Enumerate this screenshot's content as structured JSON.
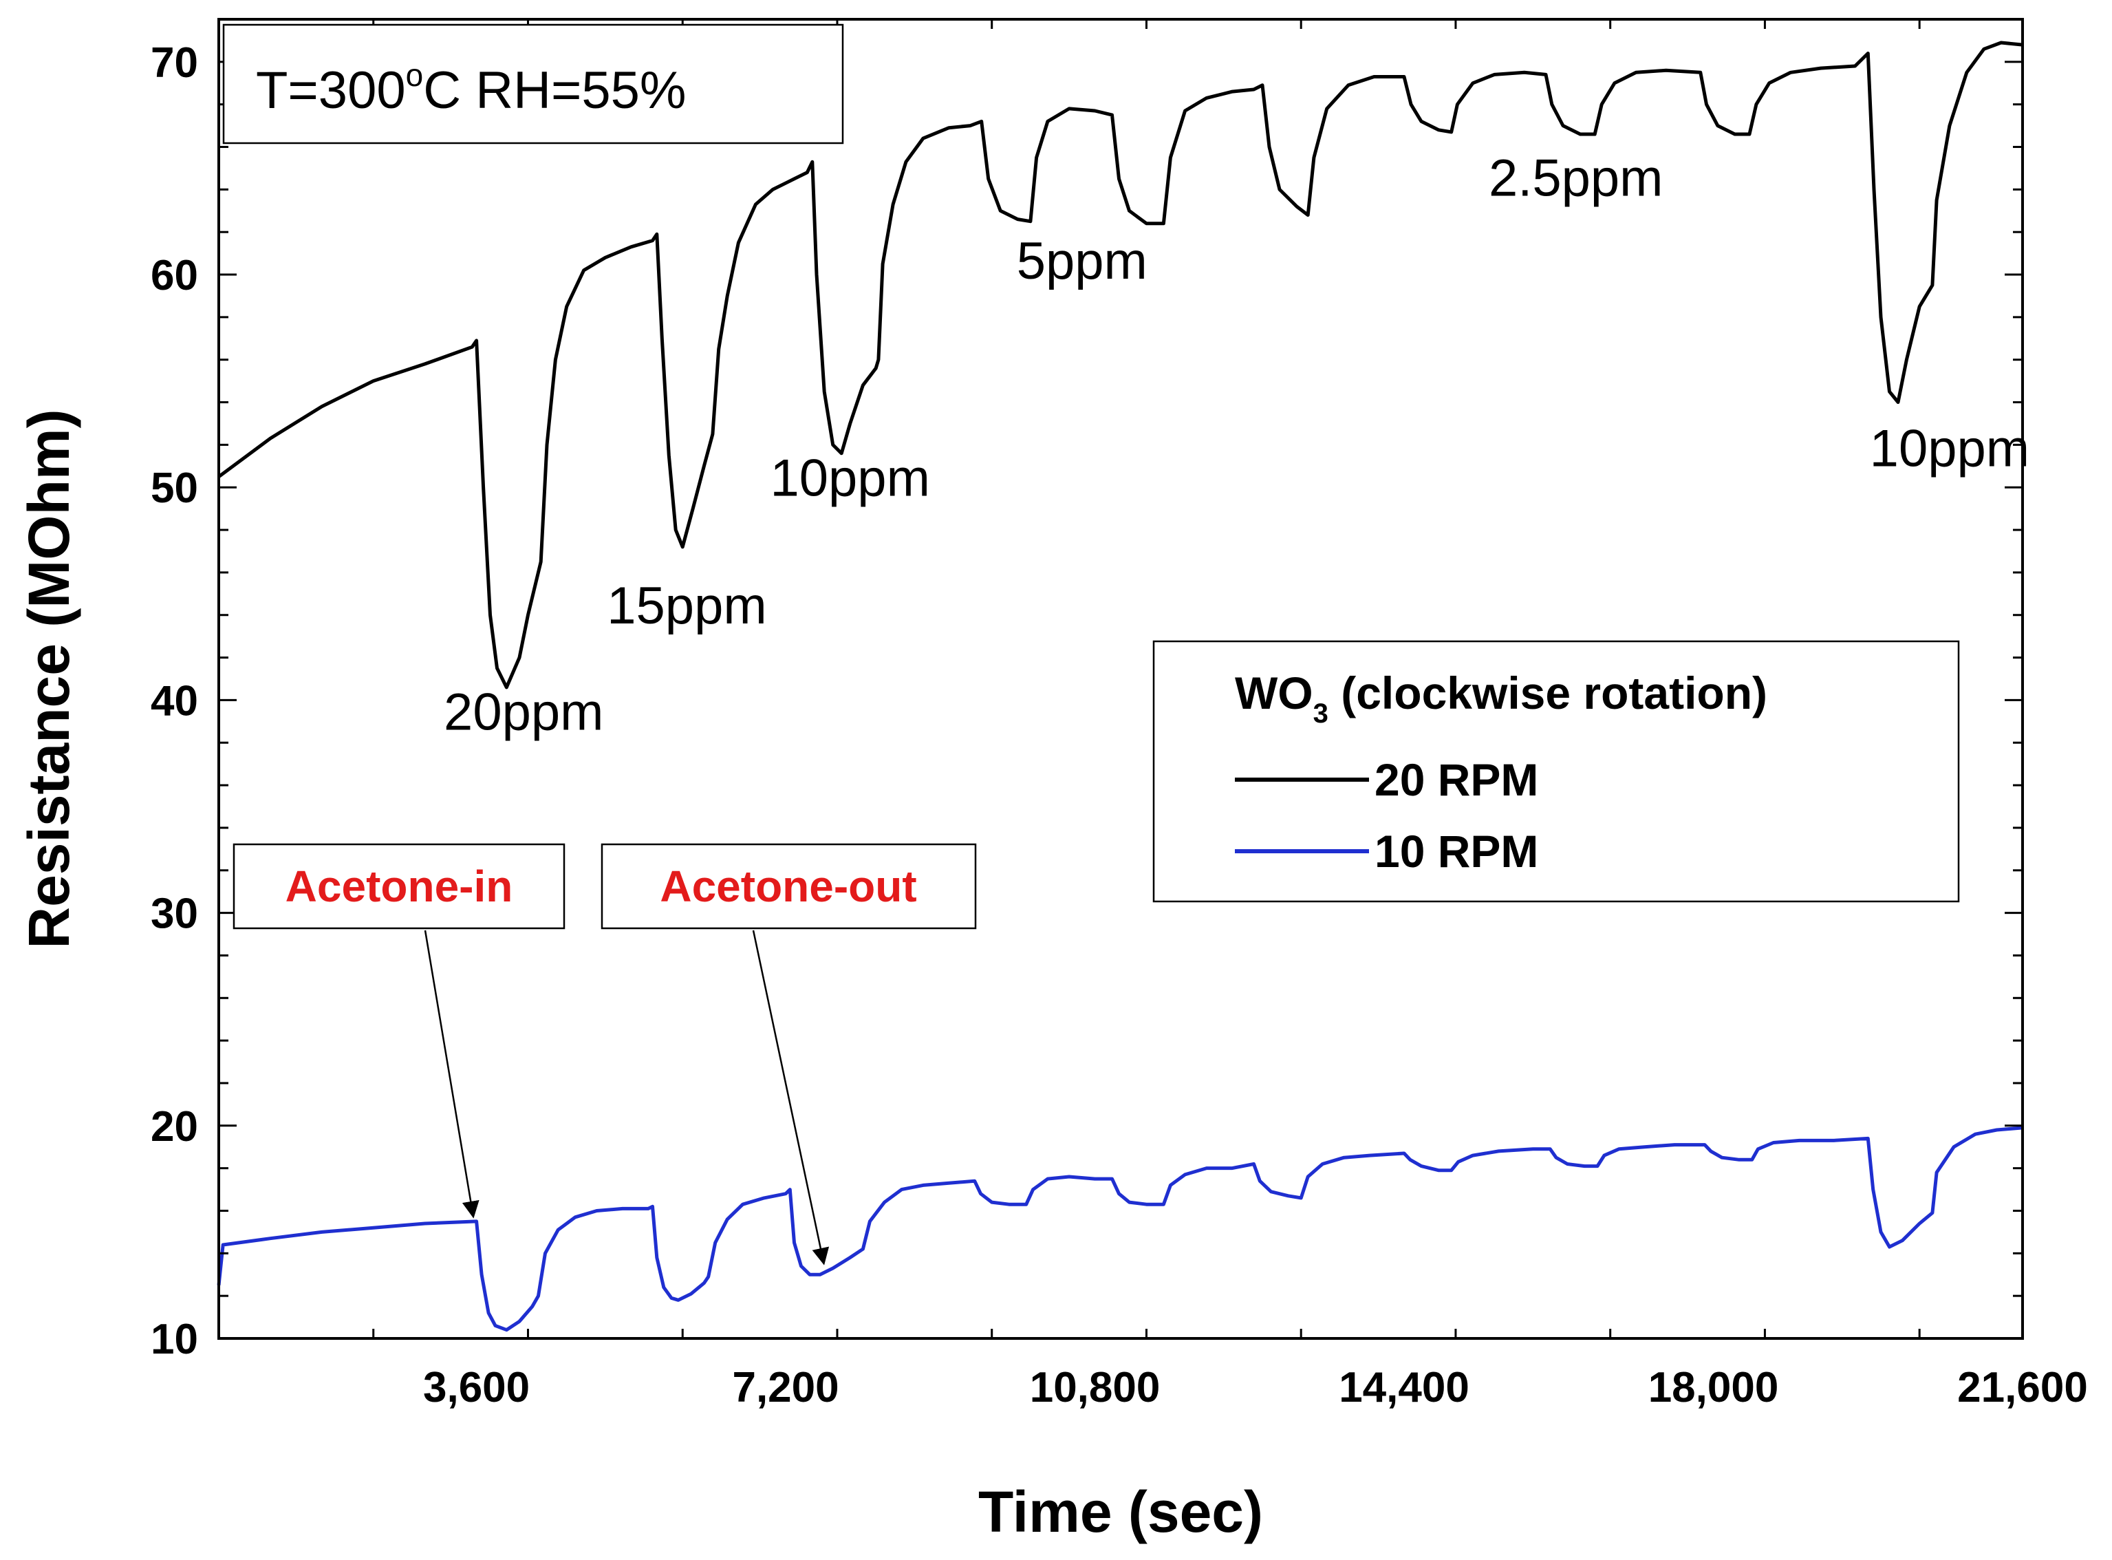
{
  "chart_data": {
    "type": "line",
    "title": "",
    "xlabel": "Time (sec)",
    "ylabel": "Resistance (MOhm)",
    "xlim": [
      600,
      21600
    ],
    "ylim": [
      10,
      72
    ],
    "x_ticks": [
      {
        "value": 3600,
        "label": "3,600"
      },
      {
        "value": 7200,
        "label": "7,200"
      },
      {
        "value": 10800,
        "label": "10,800"
      },
      {
        "value": 14400,
        "label": "14,400"
      },
      {
        "value": 18000,
        "label": "18,000"
      },
      {
        "value": 21600,
        "label": "21,600"
      }
    ],
    "y_ticks": [
      {
        "value": 10,
        "label": "10"
      },
      {
        "value": 20,
        "label": "20"
      },
      {
        "value": 30,
        "label": "30"
      },
      {
        "value": 40,
        "label": "40"
      },
      {
        "value": 50,
        "label": "50"
      },
      {
        "value": 60,
        "label": "60"
      },
      {
        "value": 70,
        "label": "70"
      }
    ],
    "condition_box": {
      "prefix": "T=300",
      "degree": "o",
      "suffix": "C RH=55%"
    },
    "legend": {
      "title_main": "WO",
      "title_sub": "3",
      "title_rest": " (clockwise rotation)",
      "position": "center-right"
    },
    "series": [
      {
        "name": "20 RPM",
        "color": "#000000",
        "points": [
          [
            600,
            50.5
          ],
          [
            1200,
            52.3
          ],
          [
            1800,
            53.8
          ],
          [
            2400,
            55.0
          ],
          [
            3000,
            55.8
          ],
          [
            3550,
            56.6
          ],
          [
            3600,
            56.9
          ],
          [
            3680,
            50.0
          ],
          [
            3760,
            44.0
          ],
          [
            3840,
            41.5
          ],
          [
            3950,
            40.6
          ],
          [
            4100,
            42.0
          ],
          [
            4200,
            44.0
          ],
          [
            4350,
            46.5
          ],
          [
            4420,
            52.0
          ],
          [
            4520,
            56.0
          ],
          [
            4650,
            58.5
          ],
          [
            4850,
            60.2
          ],
          [
            5100,
            60.8
          ],
          [
            5400,
            61.3
          ],
          [
            5650,
            61.6
          ],
          [
            5700,
            61.9
          ],
          [
            5760,
            57.0
          ],
          [
            5840,
            51.5
          ],
          [
            5920,
            48.0
          ],
          [
            6000,
            47.2
          ],
          [
            6120,
            49.0
          ],
          [
            6250,
            51.0
          ],
          [
            6350,
            52.5
          ],
          [
            6420,
            56.5
          ],
          [
            6520,
            59.0
          ],
          [
            6650,
            61.5
          ],
          [
            6850,
            63.3
          ],
          [
            7050,
            64.0
          ],
          [
            7300,
            64.5
          ],
          [
            7450,
            64.8
          ],
          [
            7510,
            65.3
          ],
          [
            7560,
            60.0
          ],
          [
            7650,
            54.5
          ],
          [
            7750,
            52.0
          ],
          [
            7850,
            51.6
          ],
          [
            7950,
            53.0
          ],
          [
            8100,
            54.8
          ],
          [
            8250,
            55.6
          ],
          [
            8280,
            56.0
          ],
          [
            8330,
            60.5
          ],
          [
            8450,
            63.3
          ],
          [
            8600,
            65.3
          ],
          [
            8800,
            66.4
          ],
          [
            9100,
            66.9
          ],
          [
            9350,
            67.0
          ],
          [
            9480,
            67.2
          ],
          [
            9560,
            64.5
          ],
          [
            9700,
            63.0
          ],
          [
            9900,
            62.6
          ],
          [
            10050,
            62.5
          ],
          [
            10120,
            65.5
          ],
          [
            10250,
            67.2
          ],
          [
            10500,
            67.8
          ],
          [
            10800,
            67.7
          ],
          [
            11000,
            67.5
          ],
          [
            11080,
            64.5
          ],
          [
            11200,
            63.0
          ],
          [
            11400,
            62.4
          ],
          [
            11600,
            62.4
          ],
          [
            11680,
            65.5
          ],
          [
            11850,
            67.7
          ],
          [
            12100,
            68.3
          ],
          [
            12400,
            68.6
          ],
          [
            12650,
            68.7
          ],
          [
            12750,
            68.9
          ],
          [
            12830,
            66.0
          ],
          [
            12950,
            64.0
          ],
          [
            13150,
            63.2
          ],
          [
            13280,
            62.8
          ],
          [
            13350,
            65.5
          ],
          [
            13500,
            67.8
          ],
          [
            13750,
            68.9
          ],
          [
            14050,
            69.3
          ],
          [
            14400,
            69.3
          ],
          [
            14480,
            68.0
          ],
          [
            14600,
            67.2
          ],
          [
            14800,
            66.8
          ],
          [
            14950,
            66.7
          ],
          [
            15020,
            68.0
          ],
          [
            15200,
            69.0
          ],
          [
            15450,
            69.4
          ],
          [
            15800,
            69.5
          ],
          [
            16050,
            69.4
          ],
          [
            16120,
            68.0
          ],
          [
            16250,
            67.0
          ],
          [
            16450,
            66.6
          ],
          [
            16620,
            66.6
          ],
          [
            16700,
            68.0
          ],
          [
            16850,
            69.0
          ],
          [
            17100,
            69.5
          ],
          [
            17450,
            69.6
          ],
          [
            17850,
            69.5
          ],
          [
            17920,
            68.0
          ],
          [
            18050,
            67.0
          ],
          [
            18250,
            66.6
          ],
          [
            18420,
            66.6
          ],
          [
            18500,
            68.0
          ],
          [
            18650,
            69.0
          ],
          [
            18900,
            69.5
          ],
          [
            19250,
            69.7
          ],
          [
            19650,
            69.8
          ],
          [
            19800,
            70.4
          ],
          [
            19870,
            64.0
          ],
          [
            19950,
            58.0
          ],
          [
            20050,
            54.5
          ],
          [
            20150,
            54.0
          ],
          [
            20250,
            56.0
          ],
          [
            20400,
            58.5
          ],
          [
            20550,
            59.5
          ],
          [
            20600,
            63.5
          ],
          [
            20750,
            67.0
          ],
          [
            20950,
            69.5
          ],
          [
            21150,
            70.6
          ],
          [
            21350,
            70.9
          ],
          [
            21600,
            70.8
          ]
        ]
      },
      {
        "name": "10 RPM",
        "color": "#1f2fd0",
        "points": [
          [
            600,
            12.5
          ],
          [
            650,
            14.4
          ],
          [
            1200,
            14.7
          ],
          [
            1800,
            15.0
          ],
          [
            2400,
            15.2
          ],
          [
            3000,
            15.4
          ],
          [
            3600,
            15.5
          ],
          [
            3660,
            13.0
          ],
          [
            3740,
            11.2
          ],
          [
            3820,
            10.6
          ],
          [
            3950,
            10.4
          ],
          [
            4100,
            10.8
          ],
          [
            4250,
            11.5
          ],
          [
            4320,
            12.0
          ],
          [
            4400,
            14.0
          ],
          [
            4550,
            15.1
          ],
          [
            4750,
            15.7
          ],
          [
            5000,
            16.0
          ],
          [
            5300,
            16.1
          ],
          [
            5600,
            16.1
          ],
          [
            5650,
            16.2
          ],
          [
            5700,
            13.8
          ],
          [
            5780,
            12.4
          ],
          [
            5870,
            11.9
          ],
          [
            5950,
            11.8
          ],
          [
            6100,
            12.1
          ],
          [
            6250,
            12.6
          ],
          [
            6300,
            12.9
          ],
          [
            6380,
            14.5
          ],
          [
            6520,
            15.6
          ],
          [
            6700,
            16.3
          ],
          [
            6950,
            16.6
          ],
          [
            7200,
            16.8
          ],
          [
            7250,
            17.0
          ],
          [
            7300,
            14.5
          ],
          [
            7380,
            13.4
          ],
          [
            7480,
            13.0
          ],
          [
            7600,
            13.0
          ],
          [
            7750,
            13.3
          ],
          [
            7950,
            13.8
          ],
          [
            8100,
            14.2
          ],
          [
            8180,
            15.5
          ],
          [
            8350,
            16.4
          ],
          [
            8550,
            17.0
          ],
          [
            8800,
            17.2
          ],
          [
            9100,
            17.3
          ],
          [
            9400,
            17.4
          ],
          [
            9470,
            16.8
          ],
          [
            9600,
            16.4
          ],
          [
            9800,
            16.3
          ],
          [
            10000,
            16.3
          ],
          [
            10080,
            17.0
          ],
          [
            10250,
            17.5
          ],
          [
            10500,
            17.6
          ],
          [
            10800,
            17.5
          ],
          [
            11000,
            17.5
          ],
          [
            11080,
            16.8
          ],
          [
            11200,
            16.4
          ],
          [
            11400,
            16.3
          ],
          [
            11600,
            16.3
          ],
          [
            11680,
            17.2
          ],
          [
            11850,
            17.7
          ],
          [
            12100,
            18.0
          ],
          [
            12400,
            18.0
          ],
          [
            12650,
            18.2
          ],
          [
            12720,
            17.4
          ],
          [
            12850,
            16.9
          ],
          [
            13050,
            16.7
          ],
          [
            13200,
            16.6
          ],
          [
            13280,
            17.6
          ],
          [
            13450,
            18.2
          ],
          [
            13700,
            18.5
          ],
          [
            14000,
            18.6
          ],
          [
            14400,
            18.7
          ],
          [
            14470,
            18.4
          ],
          [
            14600,
            18.1
          ],
          [
            14800,
            17.9
          ],
          [
            14950,
            17.9
          ],
          [
            15030,
            18.3
          ],
          [
            15200,
            18.6
          ],
          [
            15500,
            18.8
          ],
          [
            15900,
            18.9
          ],
          [
            16100,
            18.9
          ],
          [
            16170,
            18.5
          ],
          [
            16300,
            18.2
          ],
          [
            16500,
            18.1
          ],
          [
            16650,
            18.1
          ],
          [
            16730,
            18.6
          ],
          [
            16900,
            18.9
          ],
          [
            17200,
            19.0
          ],
          [
            17550,
            19.1
          ],
          [
            17900,
            19.1
          ],
          [
            17970,
            18.8
          ],
          [
            18100,
            18.5
          ],
          [
            18300,
            18.4
          ],
          [
            18450,
            18.4
          ],
          [
            18520,
            18.9
          ],
          [
            18700,
            19.2
          ],
          [
            19000,
            19.3
          ],
          [
            19400,
            19.3
          ],
          [
            19800,
            19.4
          ],
          [
            19860,
            17.0
          ],
          [
            19950,
            15.0
          ],
          [
            20050,
            14.3
          ],
          [
            20200,
            14.6
          ],
          [
            20400,
            15.4
          ],
          [
            20550,
            15.9
          ],
          [
            20600,
            17.8
          ],
          [
            20800,
            19.0
          ],
          [
            21050,
            19.6
          ],
          [
            21300,
            19.8
          ],
          [
            21600,
            19.9
          ]
        ]
      }
    ],
    "annotations": [
      {
        "text": "20ppm",
        "x": 4150,
        "y": 38.6
      },
      {
        "text": "15ppm",
        "x": 6050,
        "y": 43.6
      },
      {
        "text": "10ppm",
        "x": 7950,
        "y": 49.6
      },
      {
        "text": "5ppm",
        "x": 10650,
        "y": 59.8
      },
      {
        "text": "2.5ppm",
        "x": 16400,
        "y": 63.7
      },
      {
        "text": "10ppm",
        "x": 20750,
        "y": 51.0
      }
    ],
    "callouts": [
      {
        "text": "Acetone-in",
        "color": "#e31b1b",
        "arrow_to": [
          3560,
          15.8
        ]
      },
      {
        "text": "Acetone-out",
        "color": "#e31b1b",
        "arrow_to": [
          7640,
          13.6
        ]
      }
    ]
  }
}
